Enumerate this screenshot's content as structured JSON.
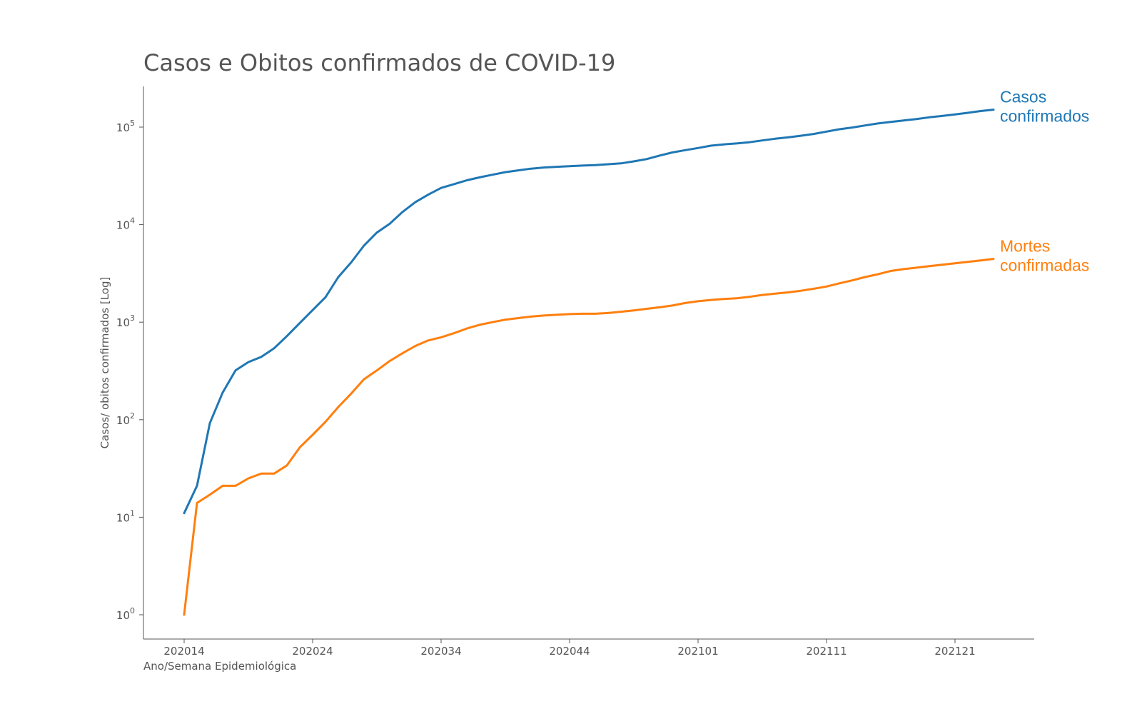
{
  "chart_data": {
    "type": "line",
    "title": "Casos e Obitos confirmados de COVID-19",
    "xlabel": "Ano/Semana Epidemiológica",
    "ylabel": "Casos/ obitos confirmados [Log]",
    "yscale": "log",
    "ylim": [
      0.6,
      250000
    ],
    "grid": false,
    "legend": "inline labels at line ends",
    "x_ticks": [
      "202014",
      "202024",
      "202034",
      "202044",
      "202101",
      "202111",
      "202121"
    ],
    "x": [
      "202014",
      "202015",
      "202016",
      "202017",
      "202018",
      "202019",
      "202020",
      "202021",
      "202022",
      "202023",
      "202024",
      "202025",
      "202026",
      "202027",
      "202028",
      "202029",
      "202030",
      "202031",
      "202032",
      "202033",
      "202034",
      "202035",
      "202036",
      "202037",
      "202038",
      "202039",
      "202040",
      "202041",
      "202042",
      "202043",
      "202044",
      "202045",
      "202046",
      "202047",
      "202048",
      "202049",
      "202050",
      "202051",
      "202052",
      "202053",
      "202101",
      "202102",
      "202103",
      "202104",
      "202105",
      "202106",
      "202107",
      "202108",
      "202109",
      "202110",
      "202111",
      "202112",
      "202113",
      "202114",
      "202115",
      "202116",
      "202117",
      "202118",
      "202119",
      "202120",
      "202121",
      "202122",
      "202123",
      "202124"
    ],
    "y_ticks": [
      {
        "base": "10",
        "exp": "0",
        "value": 1
      },
      {
        "base": "10",
        "exp": "1",
        "value": 10
      },
      {
        "base": "10",
        "exp": "2",
        "value": 100
      },
      {
        "base": "10",
        "exp": "3",
        "value": 1000
      },
      {
        "base": "10",
        "exp": "4",
        "value": 10000
      },
      {
        "base": "10",
        "exp": "5",
        "value": 100000
      }
    ],
    "series": [
      {
        "name": "Casos\nconfirmados",
        "label_lines": [
          "Casos",
          "confirmados"
        ],
        "color": "#1f77b4",
        "values": [
          11,
          21,
          92,
          190,
          320,
          390,
          440,
          540,
          720,
          980,
          1330,
          1800,
          2900,
          4100,
          6100,
          8300,
          10200,
          13500,
          17000,
          20300,
          23800,
          26000,
          28500,
          30500,
          32500,
          34500,
          36000,
          37500,
          38500,
          39200,
          39800,
          40300,
          40800,
          41600,
          42500,
          44500,
          47000,
          51000,
          55000,
          58000,
          61000,
          64500,
          66500,
          68000,
          70000,
          73000,
          76000,
          78500,
          81500,
          85000,
          90000,
          95000,
          99000,
          104000,
          109000,
          113000,
          117000,
          121000,
          126000,
          130000,
          135000,
          140000,
          146000,
          151000
        ]
      },
      {
        "name": "Mortes\nconfirmadas",
        "label_lines": [
          "Mortes",
          "confirmadas"
        ],
        "color": "#ff7f0e",
        "values": [
          1,
          14,
          17,
          21,
          21,
          25,
          28,
          28,
          34,
          52,
          70,
          95,
          135,
          185,
          260,
          320,
          400,
          480,
          570,
          650,
          700,
          770,
          860,
          940,
          1000,
          1060,
          1100,
          1140,
          1170,
          1190,
          1210,
          1220,
          1220,
          1240,
          1280,
          1320,
          1370,
          1420,
          1480,
          1570,
          1640,
          1690,
          1730,
          1760,
          1820,
          1900,
          1960,
          2020,
          2100,
          2200,
          2320,
          2500,
          2680,
          2900,
          3100,
          3350,
          3500,
          3620,
          3750,
          3880,
          4020,
          4150,
          4300,
          4450
        ]
      }
    ]
  }
}
